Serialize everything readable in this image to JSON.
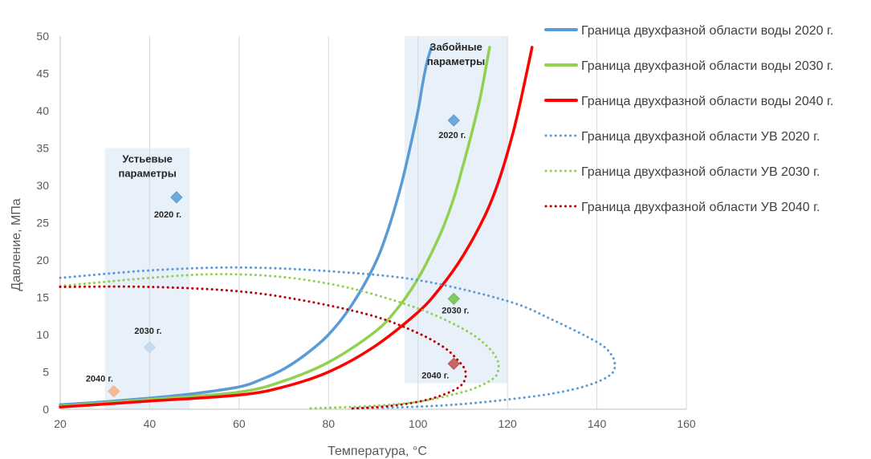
{
  "chart_data": {
    "type": "line",
    "xlabel": "Температура, °С",
    "ylabel": "Давление, МПа",
    "xlim": [
      20,
      160
    ],
    "ylim": [
      0,
      50
    ],
    "xticks": [
      20,
      40,
      60,
      80,
      100,
      120,
      140,
      160
    ],
    "yticks": [
      0,
      5,
      10,
      15,
      20,
      25,
      30,
      35,
      40,
      45,
      50
    ],
    "grid": "vertical",
    "legend_position": "right",
    "regions": [
      {
        "label_lines": [
          "Устьевые",
          "параметры"
        ],
        "x": [
          30,
          49
        ],
        "y": [
          0,
          35
        ],
        "color": "#e8f0fa"
      },
      {
        "label_lines": [
          "Забойные",
          "параметры"
        ],
        "x": [
          97,
          120
        ],
        "y": [
          3.5,
          50
        ],
        "color": "#e8f0fa"
      }
    ],
    "series": [
      {
        "name": "Граница двухфазной области воды 2020 г.",
        "style": "solid",
        "color": "#5b9bd5",
        "x": [
          20,
          30,
          40,
          50,
          60,
          65,
          70,
          75,
          80,
          85,
          90,
          93,
          96,
          98,
          100,
          101,
          102,
          103
        ],
        "y": [
          0.6,
          1.0,
          1.5,
          2.1,
          3.0,
          4.0,
          5.4,
          7.4,
          10.0,
          13.8,
          19.0,
          23.5,
          29.5,
          34.5,
          40.0,
          43.5,
          46.5,
          48.5
        ]
      },
      {
        "name": "Граница двухфазной области воды 2030 г.",
        "style": "solid",
        "color": "#92d050",
        "x": [
          20,
          40,
          60,
          70,
          80,
          90,
          95,
          100,
          105,
          108,
          110,
          112,
          114,
          116
        ],
        "y": [
          0.4,
          1.3,
          2.3,
          3.8,
          6.3,
          10.2,
          13.2,
          17.5,
          23.5,
          28.3,
          32.5,
          37.0,
          42.0,
          48.5
        ]
      },
      {
        "name": "Граница двухфазной области воды 2040 г.",
        "style": "solid",
        "color": "#ff0000",
        "x": [
          20,
          40,
          60,
          70,
          80,
          90,
          100,
          105,
          110,
          115,
          118,
          121,
          123,
          125.5
        ],
        "y": [
          0.3,
          1.1,
          1.9,
          3.0,
          5.0,
          8.3,
          13.0,
          16.3,
          20.5,
          26.0,
          30.5,
          36.5,
          41.5,
          48.5
        ]
      },
      {
        "name": "Граница двухфазной области УВ 2020 г.",
        "style": "dotted",
        "color": "#5b9bd5",
        "x": [
          20,
          40,
          60,
          80,
          100,
          120,
          130,
          140,
          143,
          144,
          143,
          138,
          130,
          120,
          110,
          100,
          85
        ],
        "y": [
          17.6,
          18.6,
          19.0,
          18.5,
          17.3,
          14.5,
          12.0,
          9.0,
          7.5,
          6.0,
          4.6,
          3.2,
          2.1,
          1.3,
          0.7,
          0.35,
          0.1
        ]
      },
      {
        "name": "Граница двухфазной области УВ 2030 г.",
        "style": "dotted",
        "color": "#92d050",
        "x": [
          20,
          40,
          55,
          70,
          85,
          100,
          110,
          115,
          117.5,
          118,
          117,
          113,
          108,
          100,
          90,
          80,
          75
        ],
        "y": [
          16.5,
          17.6,
          18.1,
          17.7,
          16.2,
          13.5,
          10.8,
          8.7,
          6.9,
          5.5,
          4.2,
          2.9,
          2.0,
          1.0,
          0.45,
          0.2,
          0.1
        ]
      },
      {
        "name": "Граница двухфазной области УВ 2040 г.",
        "style": "dotted",
        "color": "#c00000",
        "x": [
          20,
          40,
          60,
          75,
          90,
          100,
          106,
          109,
          110.5,
          110.5,
          109,
          105,
          100,
          93,
          85
        ],
        "y": [
          16.4,
          16.4,
          15.8,
          14.5,
          12.5,
          10.2,
          8.2,
          6.5,
          5.3,
          4.0,
          2.9,
          1.8,
          1.0,
          0.4,
          0.1
        ]
      }
    ],
    "points": [
      {
        "label": "2020 г.",
        "x": 46,
        "y": 28.4,
        "color": "#5b9bd5"
      },
      {
        "label": "2030 г.",
        "x": 40,
        "y": 8.3,
        "color": "#bdd7ee"
      },
      {
        "label": "2040 г.",
        "x": 32,
        "y": 2.4,
        "color": "#f4b183"
      },
      {
        "label": "2020 г.",
        "x": 108,
        "y": 38.7,
        "color": "#5b9bd5"
      },
      {
        "label": "2030 г.",
        "x": 108,
        "y": 14.8,
        "color": "#70c050"
      },
      {
        "label": "2040 г.",
        "x": 108,
        "y": 6.1,
        "color": "#c0504d"
      }
    ]
  }
}
